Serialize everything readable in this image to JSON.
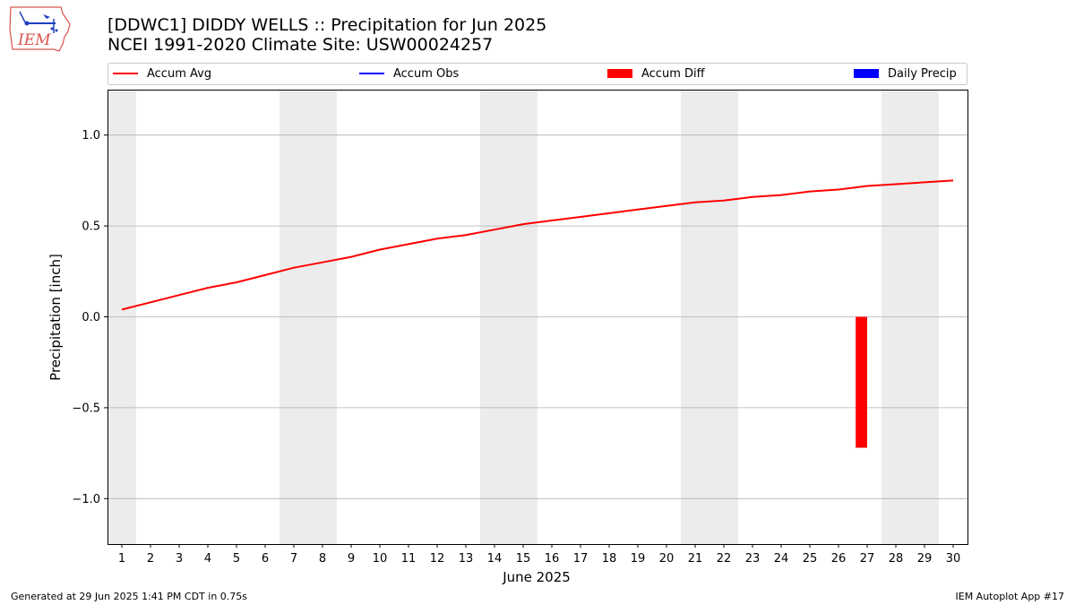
{
  "header": {
    "title_line1": "[DDWC1] DIDDY WELLS :: Precipitation for Jun 2025",
    "title_line2": "NCEI 1991-2020 Climate Site: USW00024257"
  },
  "logo": {
    "text": "IEM",
    "icon": "iem-iowa-logo"
  },
  "footer": {
    "generated": "Generated at 29 Jun 2025 1:41 PM CDT in 0.75s",
    "app": "IEM Autoplot App #17"
  },
  "colors": {
    "accum_avg": "#ff0000",
    "accum_obs": "#0000ff",
    "accum_diff": "#ff0000",
    "daily_precip": "#0000ff",
    "weekend_shade": "#ececec",
    "grid": "#b0b0b0"
  },
  "chart_data": {
    "type": "line",
    "xlabel": "June 2025",
    "ylabel": "Precipitation [inch]",
    "xlim": [
      0.5,
      30.5
    ],
    "ylim": [
      -1.25,
      1.25
    ],
    "x_ticks": [
      1,
      2,
      3,
      4,
      5,
      6,
      7,
      8,
      9,
      10,
      11,
      12,
      13,
      14,
      15,
      16,
      17,
      18,
      19,
      20,
      21,
      22,
      23,
      24,
      25,
      26,
      27,
      28,
      29,
      30
    ],
    "y_ticks": [
      -1.0,
      -0.5,
      0.0,
      0.5,
      1.0
    ],
    "y_tick_labels": [
      "−1.0",
      "−0.5",
      "0.0",
      "0.5",
      "1.0"
    ],
    "grid": "horizontal",
    "legend_position": "top",
    "legend": [
      {
        "label": "Accum Avg",
        "style": "line",
        "color": "#ff0000"
      },
      {
        "label": "Accum Obs",
        "style": "line",
        "color": "#0000ff"
      },
      {
        "label": "Accum Diff",
        "style": "bar",
        "color": "#ff0000"
      },
      {
        "label": "Daily Precip",
        "style": "bar",
        "color": "#0000ff"
      }
    ],
    "weekend_days": [
      1,
      7,
      8,
      14,
      15,
      21,
      22,
      28,
      29
    ],
    "series": [
      {
        "name": "Accum Avg",
        "type": "line",
        "x": [
          1,
          2,
          3,
          4,
          5,
          6,
          7,
          8,
          9,
          10,
          11,
          12,
          13,
          14,
          15,
          16,
          17,
          18,
          19,
          20,
          21,
          22,
          23,
          24,
          25,
          26,
          27,
          28,
          29,
          30
        ],
        "values": [
          0.04,
          0.08,
          0.12,
          0.16,
          0.19,
          0.23,
          0.27,
          0.3,
          0.33,
          0.37,
          0.4,
          0.43,
          0.45,
          0.48,
          0.51,
          0.53,
          0.55,
          0.57,
          0.59,
          0.61,
          0.63,
          0.64,
          0.66,
          0.67,
          0.69,
          0.7,
          0.72,
          0.73,
          0.74,
          0.75
        ]
      },
      {
        "name": "Accum Diff",
        "type": "bar",
        "x": [
          26.8
        ],
        "values": [
          -0.72
        ]
      }
    ]
  }
}
